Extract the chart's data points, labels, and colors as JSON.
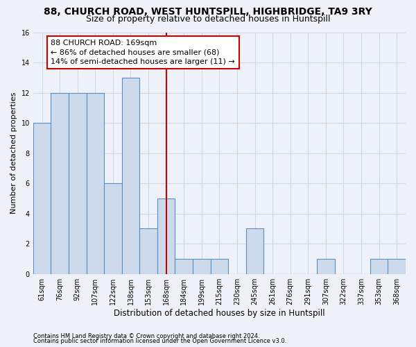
{
  "title": "88, CHURCH ROAD, WEST HUNTSPILL, HIGHBRIDGE, TA9 3RY",
  "subtitle": "Size of property relative to detached houses in Huntspill",
  "xlabel": "Distribution of detached houses by size in Huntspill",
  "ylabel": "Number of detached properties",
  "categories": [
    "61sqm",
    "76sqm",
    "92sqm",
    "107sqm",
    "122sqm",
    "138sqm",
    "153sqm",
    "168sqm",
    "184sqm",
    "199sqm",
    "215sqm",
    "230sqm",
    "245sqm",
    "261sqm",
    "276sqm",
    "291sqm",
    "307sqm",
    "322sqm",
    "337sqm",
    "353sqm",
    "368sqm"
  ],
  "values": [
    10,
    12,
    12,
    12,
    6,
    13,
    3,
    5,
    1,
    1,
    1,
    0,
    3,
    0,
    0,
    0,
    1,
    0,
    0,
    1,
    1
  ],
  "bar_color": "#ccdaeb",
  "bar_edge_color": "#5a8fc2",
  "reference_line_x": 7,
  "reference_line_color": "#cc0000",
  "annotation_line1": "88 CHURCH ROAD: 169sqm",
  "annotation_line2": "← 86% of detached houses are smaller (68)",
  "annotation_line3": "14% of semi-detached houses are larger (11) →",
  "annotation_box_color": "#ffffff",
  "annotation_box_edge": "#cc0000",
  "ylim": [
    0,
    16
  ],
  "yticks": [
    0,
    2,
    4,
    6,
    8,
    10,
    12,
    14,
    16
  ],
  "footer1": "Contains HM Land Registry data © Crown copyright and database right 2024.",
  "footer2": "Contains public sector information licensed under the Open Government Licence v3.0.",
  "background_color": "#eef2f8",
  "grid_color": "#d0d8e8",
  "title_fontsize": 10,
  "subtitle_fontsize": 9,
  "annot_fontsize": 8,
  "tick_fontsize": 7,
  "ylabel_fontsize": 8,
  "xlabel_fontsize": 8.5,
  "footer_fontsize": 6
}
